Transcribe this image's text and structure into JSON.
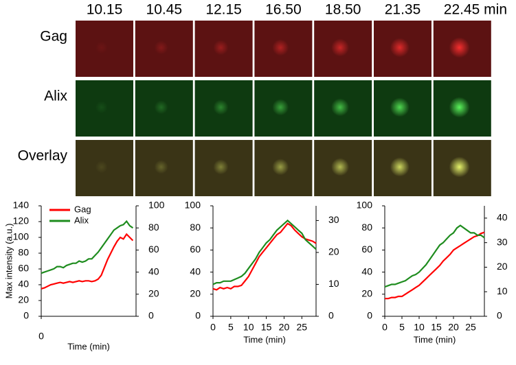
{
  "figure": {
    "time_labels": [
      "10.15",
      "10.45",
      "12.15",
      "16.50",
      "18.50",
      "21.35",
      "22.45 min"
    ],
    "row_labels": [
      "Gag",
      "Alix",
      "Overlay"
    ]
  },
  "chart_data": [
    {
      "type": "line",
      "xlabel": "Time (min)",
      "ylabel": "Max intensity (a.u.)",
      "xlim": [
        0,
        30
      ],
      "xticks": [
        0
      ],
      "ylim": [
        0,
        140
      ],
      "yticks": [
        0,
        20,
        40,
        60,
        80,
        100,
        120,
        140
      ],
      "y2lim": [
        0,
        100
      ],
      "y2ticks": [
        0,
        20,
        40,
        60,
        80,
        100
      ],
      "legend": "upper left",
      "x": [
        0,
        1,
        2,
        3,
        4,
        5,
        6,
        7,
        8,
        9,
        10,
        11,
        12,
        13,
        14,
        15,
        16,
        17,
        18,
        19,
        20,
        21,
        22,
        23,
        24,
        25,
        26,
        27,
        28,
        29
      ],
      "series": [
        {
          "name": "Gag",
          "color": "#ff0000",
          "values": [
            35,
            36,
            38,
            40,
            41,
            42,
            43,
            42,
            43,
            44,
            43,
            44,
            45,
            44,
            45,
            45,
            44,
            45,
            47,
            52,
            62,
            72,
            80,
            88,
            95,
            100,
            98,
            104,
            100,
            96
          ]
        },
        {
          "name": "Alix",
          "color": "#1e8c1e",
          "axis": "y2",
          "values": [
            39,
            40,
            41,
            42,
            43,
            45,
            45,
            44,
            46,
            47,
            48,
            48,
            50,
            49,
            50,
            52,
            52,
            55,
            58,
            62,
            66,
            70,
            74,
            78,
            80,
            82,
            83,
            86,
            82,
            80
          ]
        }
      ]
    },
    {
      "type": "line",
      "xlabel": "Time (min)",
      "xlim": [
        0,
        29
      ],
      "xticks": [
        0,
        5,
        10,
        15,
        20,
        25
      ],
      "ylim": [
        0,
        100
      ],
      "yticks": [
        0,
        20,
        40,
        60,
        80,
        100
      ],
      "y2lim": [
        0,
        34.6
      ],
      "y2ticks": [
        0,
        10,
        20,
        30
      ],
      "x": [
        0,
        1,
        2,
        3,
        4,
        5,
        6,
        7,
        8,
        9,
        10,
        11,
        12,
        13,
        14,
        15,
        16,
        17,
        18,
        19,
        20,
        21,
        22,
        23,
        24,
        25,
        26,
        27,
        28,
        29
      ],
      "series": [
        {
          "name": "Gag",
          "color": "#ff0000",
          "values": [
            25,
            24,
            26,
            25,
            26,
            25,
            27,
            27,
            28,
            32,
            36,
            42,
            48,
            54,
            58,
            62,
            66,
            70,
            74,
            76,
            80,
            84,
            82,
            78,
            75,
            72,
            70,
            69,
            68,
            66
          ]
        },
        {
          "name": "Alix",
          "color": "#1e8c1e",
          "axis": "y2",
          "values": [
            10,
            10.5,
            10.5,
            11,
            11,
            11,
            11.5,
            12,
            12.5,
            13.5,
            15,
            16.5,
            18,
            20,
            21.5,
            23,
            24,
            25.5,
            27,
            28,
            29,
            30,
            29,
            28,
            27,
            26,
            24,
            23,
            22,
            21
          ]
        }
      ]
    },
    {
      "type": "line",
      "xlabel": "Time (min)",
      "xlim": [
        0,
        29
      ],
      "xticks": [
        0,
        5,
        10,
        15,
        20,
        25
      ],
      "ylim": [
        0,
        100
      ],
      "yticks": [
        0,
        20,
        40,
        60,
        80,
        100
      ],
      "y2lim": [
        0,
        45
      ],
      "y2ticks": [
        0,
        10,
        20,
        30,
        40
      ],
      "x": [
        0,
        1,
        2,
        3,
        4,
        5,
        6,
        7,
        8,
        9,
        10,
        11,
        12,
        13,
        14,
        15,
        16,
        17,
        18,
        19,
        20,
        21,
        22,
        23,
        24,
        25,
        26,
        27,
        28,
        29
      ],
      "series": [
        {
          "name": "Gag",
          "color": "#ff0000",
          "values": [
            16,
            16,
            17,
            17,
            18,
            18,
            20,
            22,
            24,
            26,
            28,
            31,
            34,
            37,
            40,
            43,
            46,
            50,
            53,
            56,
            60,
            62,
            64,
            66,
            68,
            70,
            72,
            73,
            75,
            76
          ]
        },
        {
          "name": "Alix",
          "color": "#1e8c1e",
          "axis": "y2",
          "values": [
            12,
            12.5,
            13,
            13,
            13.5,
            14,
            14.5,
            15.5,
            16.5,
            17,
            18,
            19.5,
            21,
            23,
            25,
            27,
            29,
            30,
            31.5,
            33,
            34,
            36,
            37,
            36,
            35,
            34,
            34,
            33,
            33,
            32
          ]
        }
      ]
    }
  ]
}
